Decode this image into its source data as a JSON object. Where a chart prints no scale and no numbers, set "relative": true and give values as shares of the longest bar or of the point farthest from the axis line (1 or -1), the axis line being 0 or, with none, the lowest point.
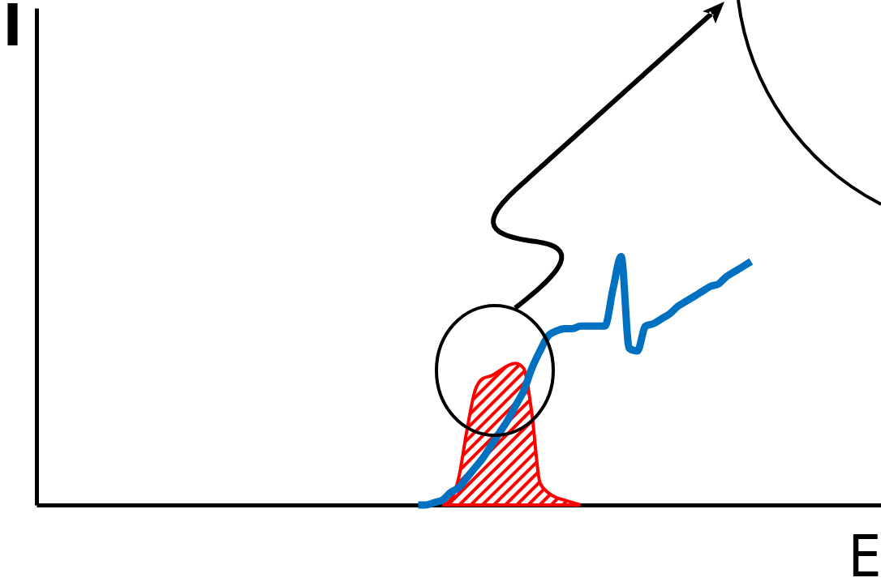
{
  "chart_data": {
    "type": "line",
    "relative": true,
    "xlabel": "E",
    "ylabel": "I",
    "categories": [
      null,
      null,
      null,
      null,
      null,
      null,
      null,
      null,
      null,
      null,
      null,
      null,
      null,
      null,
      null,
      null,
      null,
      null,
      null,
      null,
      null,
      null,
      null,
      null,
      null,
      null,
      null,
      null,
      null,
      null,
      null,
      null,
      null,
      null,
      null,
      null,
      null,
      null,
      null,
      null,
      null,
      null,
      null,
      null,
      null,
      null,
      null,
      null,
      null,
      null,
      null,
      null,
      null,
      null,
      null,
      null,
      null,
      null,
      null,
      null,
      null,
      null,
      null,
      null,
      null,
      null,
      null,
      null,
      null,
      null,
      null,
      null,
      null,
      null,
      null,
      null,
      null,
      null,
      null,
      null,
      null,
      null,
      null,
      null,
      null,
      null,
      null,
      null,
      null,
      null,
      null,
      null,
      null,
      null,
      null,
      null,
      null,
      null,
      null,
      null,
      null,
      null,
      null,
      null,
      null
    ],
    "series": [
      {
        "type": "area",
        "color": "#ff0000",
        "values": [
          null,
          null,
          null,
          null,
          null,
          null,
          null,
          null,
          null,
          null,
          null,
          null,
          null,
          null,
          null,
          null,
          null,
          null,
          null,
          null,
          null,
          null,
          null,
          null,
          null,
          null,
          null,
          null,
          null,
          null,
          null,
          null,
          null,
          null,
          null,
          null,
          null,
          null,
          null,
          null,
          null,
          null,
          null,
          null,
          null,
          null,
          null,
          null,
          null,
          null,
          0,
          0.02,
          0.11,
          0.3,
          0.46,
          0.51,
          0.52,
          0.54,
          0.56,
          0.57,
          0.55,
          0.37,
          0.09,
          0.05,
          0.03,
          0.02,
          0.01,
          0,
          null,
          null,
          null,
          null,
          null,
          null,
          null,
          null,
          null,
          null,
          null,
          null,
          null,
          null,
          null,
          null,
          null,
          null,
          null,
          null,
          null,
          null,
          null,
          null,
          null,
          null,
          null,
          null,
          null,
          null,
          null,
          null,
          null,
          null,
          null,
          null,
          null
        ]
      },
      {
        "color": "#0070c0",
        "values": [
          null,
          null,
          null,
          null,
          null,
          null,
          null,
          null,
          null,
          null,
          null,
          null,
          null,
          null,
          null,
          null,
          null,
          null,
          null,
          null,
          null,
          null,
          null,
          null,
          null,
          null,
          null,
          null,
          null,
          null,
          null,
          null,
          null,
          null,
          null,
          null,
          null,
          null,
          null,
          null,
          null,
          null,
          null,
          null,
          null,
          null,
          null,
          0,
          0,
          0.01,
          0.02,
          0.05,
          0.07,
          0.11,
          0.15,
          0.19,
          0.24,
          0.29,
          0.34,
          0.4,
          0.46,
          0.55,
          0.62,
          0.68,
          0.7,
          0.71,
          0.71,
          0.72,
          0.72,
          0.72,
          0.72,
          0.87,
          1.0,
          0.63,
          0.62,
          0.72,
          0.73,
          0.75,
          0.77,
          0.8,
          0.82,
          0.84,
          0.86,
          0.88,
          0.89,
          0.92,
          0.94,
          0.96,
          0.98,
          null,
          null,
          null,
          null,
          null,
          null,
          null,
          null,
          null,
          null,
          null,
          null,
          null,
          null,
          null,
          null
        ]
      }
    ]
  }
}
